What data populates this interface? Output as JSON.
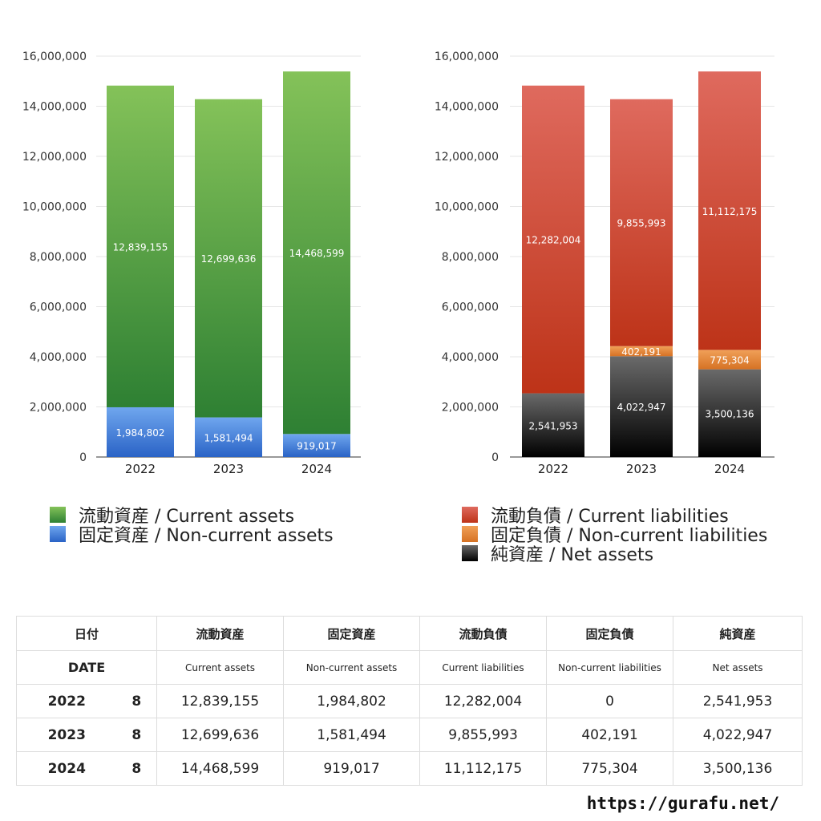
{
  "chart_data": [
    {
      "type": "bar",
      "stacked": true,
      "categories": [
        "2022",
        "2023",
        "2024"
      ],
      "series": [
        {
          "name": "固定資産 / Non-current assets",
          "color": "#4a86dc",
          "values": [
            1984802,
            1581494,
            919017
          ]
        },
        {
          "name": "流動資産 / Current assets",
          "color": "#56a845",
          "values": [
            12839155,
            12699636,
            14468599
          ]
        }
      ],
      "ylim": [
        0,
        16000000
      ],
      "yticks": [
        "0",
        "2,000,000",
        "4,000,000",
        "6,000,000",
        "8,000,000",
        "10,000,000",
        "12,000,000",
        "14,000,000",
        "16,000,000"
      ],
      "data_labels": [
        [
          "1,984,802",
          "1,581,494",
          "919,017"
        ],
        [
          "12,839,155",
          "12,699,636",
          "14,468,599"
        ]
      ],
      "grid": true,
      "legend": "bottom"
    },
    {
      "type": "bar",
      "stacked": true,
      "categories": [
        "2022",
        "2023",
        "2024"
      ],
      "series": [
        {
          "name": "純資産 / Net assets",
          "color": "#222222",
          "values": [
            2541953,
            4022947,
            3500136
          ]
        },
        {
          "name": "固定負債 / Non-current liabilities",
          "color": "#e08a3a",
          "values": [
            0,
            402191,
            775304
          ]
        },
        {
          "name": "流動負債 / Current liabilities",
          "color": "#d24a3a",
          "values": [
            12282004,
            9855993,
            11112175
          ]
        }
      ],
      "ylim": [
        0,
        16000000
      ],
      "yticks": [
        "0",
        "2,000,000",
        "4,000,000",
        "6,000,000",
        "8,000,000",
        "10,000,000",
        "12,000,000",
        "14,000,000",
        "16,000,000"
      ],
      "data_labels": [
        [
          "2,541,953",
          "4,022,947",
          "3,500,136"
        ],
        [
          "",
          "402,191",
          "775,304"
        ],
        [
          "12,282,004",
          "9,855,993",
          "11,112,175"
        ]
      ],
      "grid": true,
      "legend": "bottom"
    }
  ],
  "legend_left": [
    {
      "label": "流動資産 / Current assets",
      "color": "#56a845"
    },
    {
      "label": "固定資産 / Non-current assets",
      "color": "#4a86dc"
    }
  ],
  "legend_right": [
    {
      "label": "流動負債 / Current liabilities",
      "color": "#d24a3a"
    },
    {
      "label": "固定負債 / Non-current liabilities",
      "color": "#e08a3a"
    },
    {
      "label": "純資産 / Net assets",
      "color": "#222222"
    }
  ],
  "table": {
    "header_ja": {
      "date": "日付",
      "ca": "流動資産",
      "nca": "固定資産",
      "cl": "流動負債",
      "ncl": "固定負債",
      "na": "純資産"
    },
    "header_en": {
      "date": "DATE",
      "ca": "Current assets",
      "nca": "Non-current assets",
      "cl": "Current liabilities",
      "ncl": "Non-current liabilities",
      "na": "Net assets"
    },
    "rows": [
      {
        "year": "2022",
        "month": "8",
        "ca": "12,839,155",
        "nca": "1,984,802",
        "cl": "12,282,004",
        "ncl": "0",
        "na": "2,541,953"
      },
      {
        "year": "2023",
        "month": "8",
        "ca": "12,699,636",
        "nca": "1,581,494",
        "cl": "9,855,993",
        "ncl": "402,191",
        "na": "4,022,947"
      },
      {
        "year": "2024",
        "month": "8",
        "ca": "14,468,599",
        "nca": "919,017",
        "cl": "11,112,175",
        "ncl": "775,304",
        "na": "3,500,136"
      }
    ]
  },
  "source_url": "https://gurafu.net/"
}
